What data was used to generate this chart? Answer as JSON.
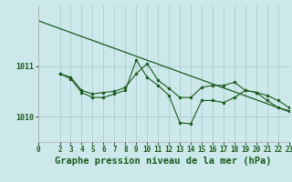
{
  "background_color": "#cce8eb",
  "plot_bg_color": "#cce8eb",
  "grid_color": "#aacccc",
  "line_color": "#1a5c1a",
  "marker_color": "#1a5c1a",
  "title": "Graphe pression niveau de la mer (hPa)",
  "title_fontsize": 7.5,
  "xlim": [
    0,
    23
  ],
  "ylim": [
    1009.5,
    1012.2
  ],
  "yticks": [
    1010,
    1011
  ],
  "xticks": [
    0,
    2,
    3,
    4,
    5,
    6,
    7,
    8,
    9,
    10,
    11,
    12,
    13,
    14,
    15,
    16,
    17,
    18,
    19,
    20,
    21,
    22,
    23
  ],
  "trend_x": [
    0,
    23
  ],
  "trend_y": [
    1011.9,
    1010.1
  ],
  "series1_x": [
    2,
    3,
    4,
    5,
    6,
    7,
    8,
    9,
    10,
    11,
    12,
    13,
    14,
    15,
    16,
    17,
    18,
    19,
    20,
    21,
    22,
    23
  ],
  "series1_y": [
    1010.85,
    1010.78,
    1010.52,
    1010.45,
    1010.48,
    1010.5,
    1010.58,
    1010.85,
    1011.05,
    1010.72,
    1010.56,
    1010.38,
    1010.38,
    1010.58,
    1010.62,
    1010.62,
    1010.68,
    1010.52,
    1010.48,
    1010.42,
    1010.32,
    1010.18
  ],
  "series2_x": [
    2,
    3,
    4,
    5,
    6,
    7,
    8,
    9,
    10,
    11,
    12,
    13,
    14,
    15,
    16,
    17,
    18,
    19,
    20,
    21,
    22,
    23
  ],
  "series2_y": [
    1010.85,
    1010.75,
    1010.48,
    1010.38,
    1010.38,
    1010.45,
    1010.52,
    1011.12,
    1010.78,
    1010.62,
    1010.42,
    1009.88,
    1009.86,
    1010.32,
    1010.32,
    1010.28,
    1010.38,
    1010.52,
    1010.48,
    1010.32,
    1010.18,
    1010.12
  ]
}
